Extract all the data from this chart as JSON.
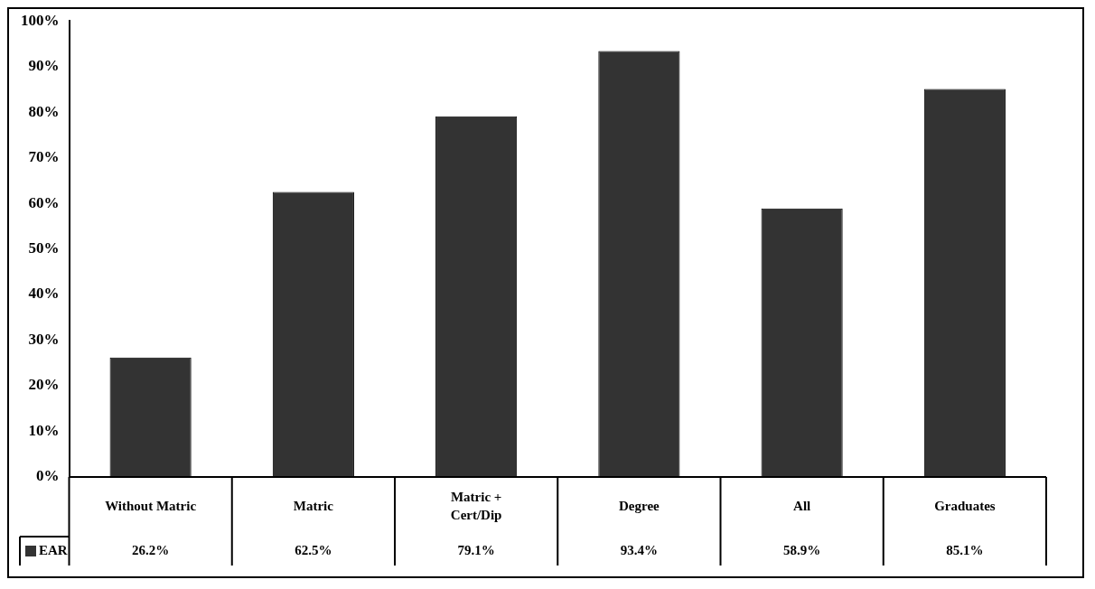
{
  "chart_data": {
    "type": "bar",
    "categories": [
      "Without Matric",
      "Matric",
      "Matric + Cert/Dip",
      "Degree",
      "All",
      "Graduates"
    ],
    "series": [
      {
        "name": "EAR",
        "color": "#333333",
        "values": [
          26.2,
          62.5,
          79.1,
          93.4,
          58.9,
          85.1
        ],
        "value_labels": [
          "26.2%",
          "62.5%",
          "79.1%",
          "93.4%",
          "58.9%",
          "85.1%"
        ]
      }
    ],
    "ylim": [
      0,
      100
    ],
    "yticks": [
      {
        "value": 0,
        "label": "0%"
      },
      {
        "value": 10,
        "label": "10%"
      },
      {
        "value": 20,
        "label": "20%"
      },
      {
        "value": 30,
        "label": "30%"
      },
      {
        "value": 40,
        "label": "40%"
      },
      {
        "value": 50,
        "label": "50%"
      },
      {
        "value": 60,
        "label": "60%"
      },
      {
        "value": 70,
        "label": "70%"
      },
      {
        "value": 80,
        "label": "80%"
      },
      {
        "value": 90,
        "label": "90%"
      },
      {
        "value": 100,
        "label": "100%"
      }
    ],
    "grid": false,
    "legend": "bottom"
  }
}
